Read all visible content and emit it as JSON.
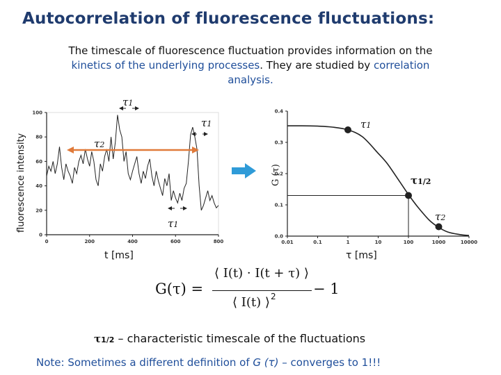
{
  "title": "Autocorrelation of fluorescence fluctuations:",
  "intro": {
    "line1": "The timescale of fluorescence fluctuation provides information on the",
    "line2a": "kinetics of the underlying processes",
    "line2b": ". They are studied by ",
    "line2c": "correlation",
    "line3": "analysis."
  },
  "labels": {
    "left_ylabel": "fluorescence intensity",
    "left_xlabel": "t [ms]",
    "right_ylabel": "G (τ)",
    "right_xlabel": "τ [ms]",
    "tau1": "τ",
    "tau1_sub": "1",
    "tau2_sub": "2",
    "tau_half": "τ",
    "tau_half_sub": "1/2"
  },
  "formula": {
    "lhs": "G(τ) =",
    "numerator": "⟨ I(t) · I(t + τ) ⟩",
    "denominator": "⟨ I(t) ⟩",
    "power": "2",
    "minus": "− 1"
  },
  "definition": {
    "sym": "τ",
    "sub": "1/2",
    "text": " – characteristic timescale of the fluctuations"
  },
  "note": {
    "a": "Note: Sometimes a different definition of ",
    "b": "G (τ)",
    "c": " – converges to 1!!!"
  },
  "colors": {
    "title": "#1f3b6e",
    "text_blue": "#1f4e9a",
    "arrow": "#e07a3a",
    "big_arrow": "#2f9bd8"
  },
  "chart_data": [
    {
      "type": "line",
      "xlabel": "t [ms]",
      "ylabel": "fluorescence intensity",
      "xlim": [
        0,
        800
      ],
      "ylim": [
        0,
        100
      ],
      "xticks": [
        0,
        200,
        400,
        600,
        800
      ],
      "yticks": [
        0,
        20,
        40,
        60,
        80,
        100
      ],
      "x": [
        0,
        10,
        20,
        30,
        40,
        50,
        60,
        70,
        80,
        90,
        100,
        110,
        120,
        130,
        140,
        150,
        160,
        170,
        180,
        190,
        200,
        210,
        220,
        230,
        240,
        250,
        260,
        270,
        280,
        290,
        300,
        310,
        320,
        330,
        340,
        350,
        360,
        370,
        380,
        390,
        400,
        410,
        420,
        430,
        440,
        450,
        460,
        470,
        480,
        490,
        500,
        510,
        520,
        530,
        540,
        550,
        560,
        570,
        580,
        590,
        600,
        610,
        620,
        630,
        640,
        650,
        660,
        670,
        680,
        690,
        700,
        710,
        720,
        730,
        740,
        750,
        760,
        770,
        780,
        790,
        800
      ],
      "y": [
        48,
        56,
        52,
        60,
        50,
        58,
        72,
        55,
        45,
        58,
        52,
        48,
        42,
        55,
        50,
        60,
        65,
        58,
        70,
        62,
        56,
        68,
        60,
        45,
        40,
        58,
        52,
        64,
        70,
        60,
        80,
        62,
        76,
        98,
        86,
        80,
        60,
        68,
        50,
        45,
        52,
        58,
        64,
        50,
        42,
        52,
        46,
        56,
        62,
        48,
        40,
        52,
        44,
        38,
        32,
        46,
        40,
        50,
        28,
        36,
        30,
        26,
        34,
        28,
        38,
        42,
        60,
        82,
        88,
        80,
        70,
        40,
        20,
        24,
        30,
        36,
        28,
        32,
        26,
        22,
        24
      ]
    },
    {
      "type": "line",
      "xscale": "log",
      "xlabel": "τ [ms]",
      "ylabel": "G (τ)",
      "xlim": [
        0.01,
        10000
      ],
      "ylim": [
        0,
        0.4
      ],
      "xticks": [
        0.01,
        0.1,
        1,
        10,
        100,
        1000,
        10000
      ],
      "yticks": [
        0.0,
        0.1,
        0.2,
        0.3,
        0.4
      ],
      "x": [
        0.01,
        0.03,
        0.1,
        0.3,
        1,
        3,
        10,
        20,
        50,
        100,
        200,
        500,
        1000,
        2000,
        5000,
        10000
      ],
      "y": [
        0.353,
        0.353,
        0.352,
        0.349,
        0.34,
        0.318,
        0.265,
        0.232,
        0.176,
        0.133,
        0.094,
        0.05,
        0.028,
        0.013,
        0.005,
        0.002
      ],
      "markers": [
        {
          "x": 1,
          "y": 0.34
        },
        {
          "x": 100,
          "y": 0.13
        },
        {
          "x": 1000,
          "y": 0.03
        }
      ]
    }
  ]
}
